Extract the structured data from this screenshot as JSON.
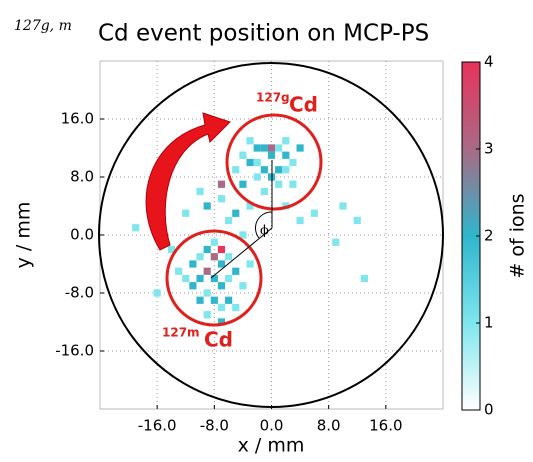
{
  "chart_data": {
    "type": "heatmap",
    "title_superscript": "127g, m",
    "title": "Cd event position on MCP-PS",
    "xlabel": "x / mm",
    "ylabel": "y / mm",
    "colorbar_label": "# of ions",
    "annotations": {
      "upper_mass": "127g",
      "upper_element": "Cd",
      "lower_mass": "127m",
      "lower_element": "Cd",
      "angle": "ϕ"
    },
    "xlim": [
      -24,
      24
    ],
    "ylim": [
      -24,
      24
    ],
    "xticks": [
      {
        "value": -16,
        "label": "-16.0"
      },
      {
        "value": -8,
        "label": "-8.0"
      },
      {
        "value": 0,
        "label": "0.0"
      },
      {
        "value": 8,
        "label": "8.0"
      },
      {
        "value": 16,
        "label": "16.0"
      }
    ],
    "yticks": [
      {
        "value": -16,
        "label": "-16.0"
      },
      {
        "value": -8,
        "label": "-8.0"
      },
      {
        "value": 0,
        "label": "0.0"
      },
      {
        "value": 8,
        "label": "8.0"
      },
      {
        "value": 16,
        "label": "16.0"
      }
    ],
    "clim": [
      0,
      4
    ],
    "cticks": [
      0,
      1,
      2,
      3,
      4
    ],
    "colormap": [
      "#ffffff",
      "#7fe6ee",
      "#2fb6cc",
      "#a86a86",
      "#e8335a"
    ],
    "grid": true,
    "x": [
      -3,
      -2,
      -1,
      0,
      1,
      2,
      -4,
      -3,
      -2,
      -1,
      1,
      2,
      3,
      -2,
      0,
      1,
      -1,
      3,
      4,
      -5,
      2,
      0,
      -11,
      -10,
      -9,
      -8,
      -7,
      -6,
      -12,
      -11,
      -10,
      -9,
      -8,
      -7,
      -6,
      -5,
      -4,
      -10,
      -9,
      -8,
      -7,
      -6,
      -9,
      -5,
      -13,
      -3,
      -8,
      -7,
      -6,
      -9,
      -10,
      -7,
      -5,
      -4,
      -12,
      -4,
      -19,
      -14,
      4,
      6,
      10,
      12,
      9,
      13,
      -7,
      -3,
      2,
      -16,
      -7
    ],
    "y": [
      13,
      12,
      12,
      12,
      12,
      11,
      11,
      10,
      10,
      9,
      9,
      9,
      10,
      8,
      8,
      7,
      6,
      7,
      12,
      9,
      13,
      11,
      -4,
      -3,
      -2,
      -3,
      -4,
      -3,
      -6,
      -7,
      -6,
      -5,
      -6,
      -7,
      -6,
      -5,
      -7,
      -9,
      -8,
      -9,
      -10,
      -9,
      -11,
      -10,
      -5,
      -4,
      -1,
      -12,
      2,
      4,
      6,
      5,
      3,
      0,
      3,
      7,
      1,
      -2,
      2,
      3,
      4,
      2,
      -1,
      -6,
      7,
      4,
      4,
      -8,
      -2
    ],
    "values": [
      1,
      2,
      2,
      3,
      1,
      2,
      1,
      2,
      1,
      2,
      2,
      1,
      1,
      1,
      2,
      1,
      1,
      1,
      2,
      1,
      1,
      2,
      2,
      1,
      2,
      3,
      2,
      1,
      1,
      2,
      2,
      3,
      2,
      2,
      1,
      2,
      1,
      2,
      1,
      2,
      1,
      2,
      1,
      1,
      1,
      1,
      1,
      2,
      1,
      2,
      1,
      1,
      2,
      1,
      1,
      2,
      1,
      1,
      1,
      1,
      1,
      1,
      1,
      1,
      3,
      1,
      1,
      1,
      4
    ]
  }
}
